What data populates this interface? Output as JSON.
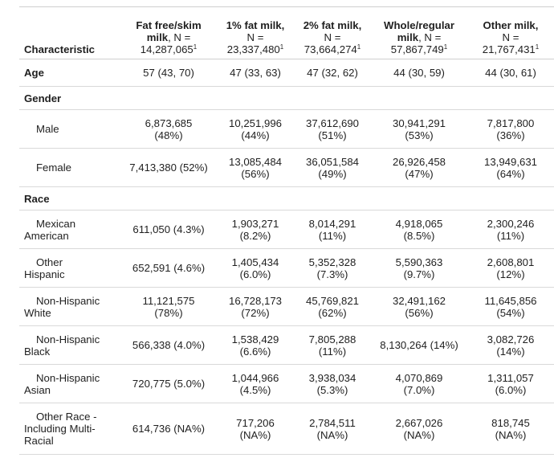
{
  "header": {
    "characteristic": "Characteristic",
    "columns": [
      {
        "line1": "Fat free/skim",
        "line2b": "milk",
        "line2": ", N =",
        "n": "14,287,065"
      },
      {
        "line1": "1% fat milk,",
        "line2b": "",
        "line2": "N =",
        "n": "23,337,480"
      },
      {
        "line1": "2% fat milk,",
        "line2b": "",
        "line2": "N =",
        "n": "73,664,274"
      },
      {
        "line1": "Whole/regular",
        "line2b": "milk",
        "line2": ", N =",
        "n": "57,867,749"
      },
      {
        "line1": "Other milk,",
        "line2b": "",
        "line2": "N =",
        "n": "21,767,431"
      }
    ],
    "footnote_mark": "1"
  },
  "rows": {
    "age": {
      "label": "Age",
      "c": [
        "57 (43, 70)",
        "47 (33, 63)",
        "47 (32, 62)",
        "44 (30, 59)",
        "44 (30, 61)"
      ]
    },
    "gender": {
      "label": "Gender"
    },
    "male": {
      "label": "Male",
      "c": [
        [
          "6,873,685",
          "(48%)"
        ],
        [
          "10,251,996",
          "(44%)"
        ],
        [
          "37,612,690",
          "(51%)"
        ],
        [
          "30,941,291",
          "(53%)"
        ],
        [
          "7,817,800",
          "(36%)"
        ]
      ]
    },
    "female": {
      "label": "Female",
      "c": [
        [
          "7,413,380 (52%)"
        ],
        [
          "13,085,484",
          "(56%)"
        ],
        [
          "36,051,584",
          "(49%)"
        ],
        [
          "26,926,458",
          "(47%)"
        ],
        [
          "13,949,631",
          "(64%)"
        ]
      ]
    },
    "race": {
      "label": "Race"
    },
    "mexican": {
      "label": [
        "Mexican",
        "American"
      ],
      "c": [
        [
          "611,050 (4.3%)"
        ],
        [
          "1,903,271",
          "(8.2%)"
        ],
        [
          "8,014,291",
          "(11%)"
        ],
        [
          "4,918,065",
          "(8.5%)"
        ],
        [
          "2,300,246",
          "(11%)"
        ]
      ]
    },
    "other_hispanic": {
      "label": [
        "Other",
        "Hispanic"
      ],
      "c": [
        [
          "652,591 (4.6%)"
        ],
        [
          "1,405,434",
          "(6.0%)"
        ],
        [
          "5,352,328",
          "(7.3%)"
        ],
        [
          "5,590,363",
          "(9.7%)"
        ],
        [
          "2,608,801",
          "(12%)"
        ]
      ]
    },
    "nh_white": {
      "label": [
        "Non-Hispanic",
        "White"
      ],
      "c": [
        [
          "11,121,575",
          "(78%)"
        ],
        [
          "16,728,173",
          "(72%)"
        ],
        [
          "45,769,821",
          "(62%)"
        ],
        [
          "32,491,162",
          "(56%)"
        ],
        [
          "11,645,856",
          "(54%)"
        ]
      ]
    },
    "nh_black": {
      "label": [
        "Non-Hispanic",
        "Black"
      ],
      "c": [
        [
          "566,338 (4.0%)"
        ],
        [
          "1,538,429",
          "(6.6%)"
        ],
        [
          "7,805,288",
          "(11%)"
        ],
        [
          "8,130,264 (14%)"
        ],
        [
          "3,082,726",
          "(14%)"
        ]
      ]
    },
    "nh_asian": {
      "label": [
        "Non-Hispanic",
        "Asian"
      ],
      "c": [
        [
          "720,775 (5.0%)"
        ],
        [
          "1,044,966",
          "(4.5%)"
        ],
        [
          "3,938,034",
          "(5.3%)"
        ],
        [
          "4,070,869",
          "(7.0%)"
        ],
        [
          "1,311,057",
          "(6.0%)"
        ]
      ]
    },
    "other_race": {
      "label": [
        "Other Race -",
        "Including Multi-",
        "Racial"
      ],
      "c": [
        [
          "614,736 (NA%)"
        ],
        [
          "717,206",
          "(NA%)"
        ],
        [
          "2,784,511",
          "(NA%)"
        ],
        [
          "2,667,026",
          "(NA%)"
        ],
        [
          "818,745",
          "(NA%)"
        ]
      ]
    }
  }
}
